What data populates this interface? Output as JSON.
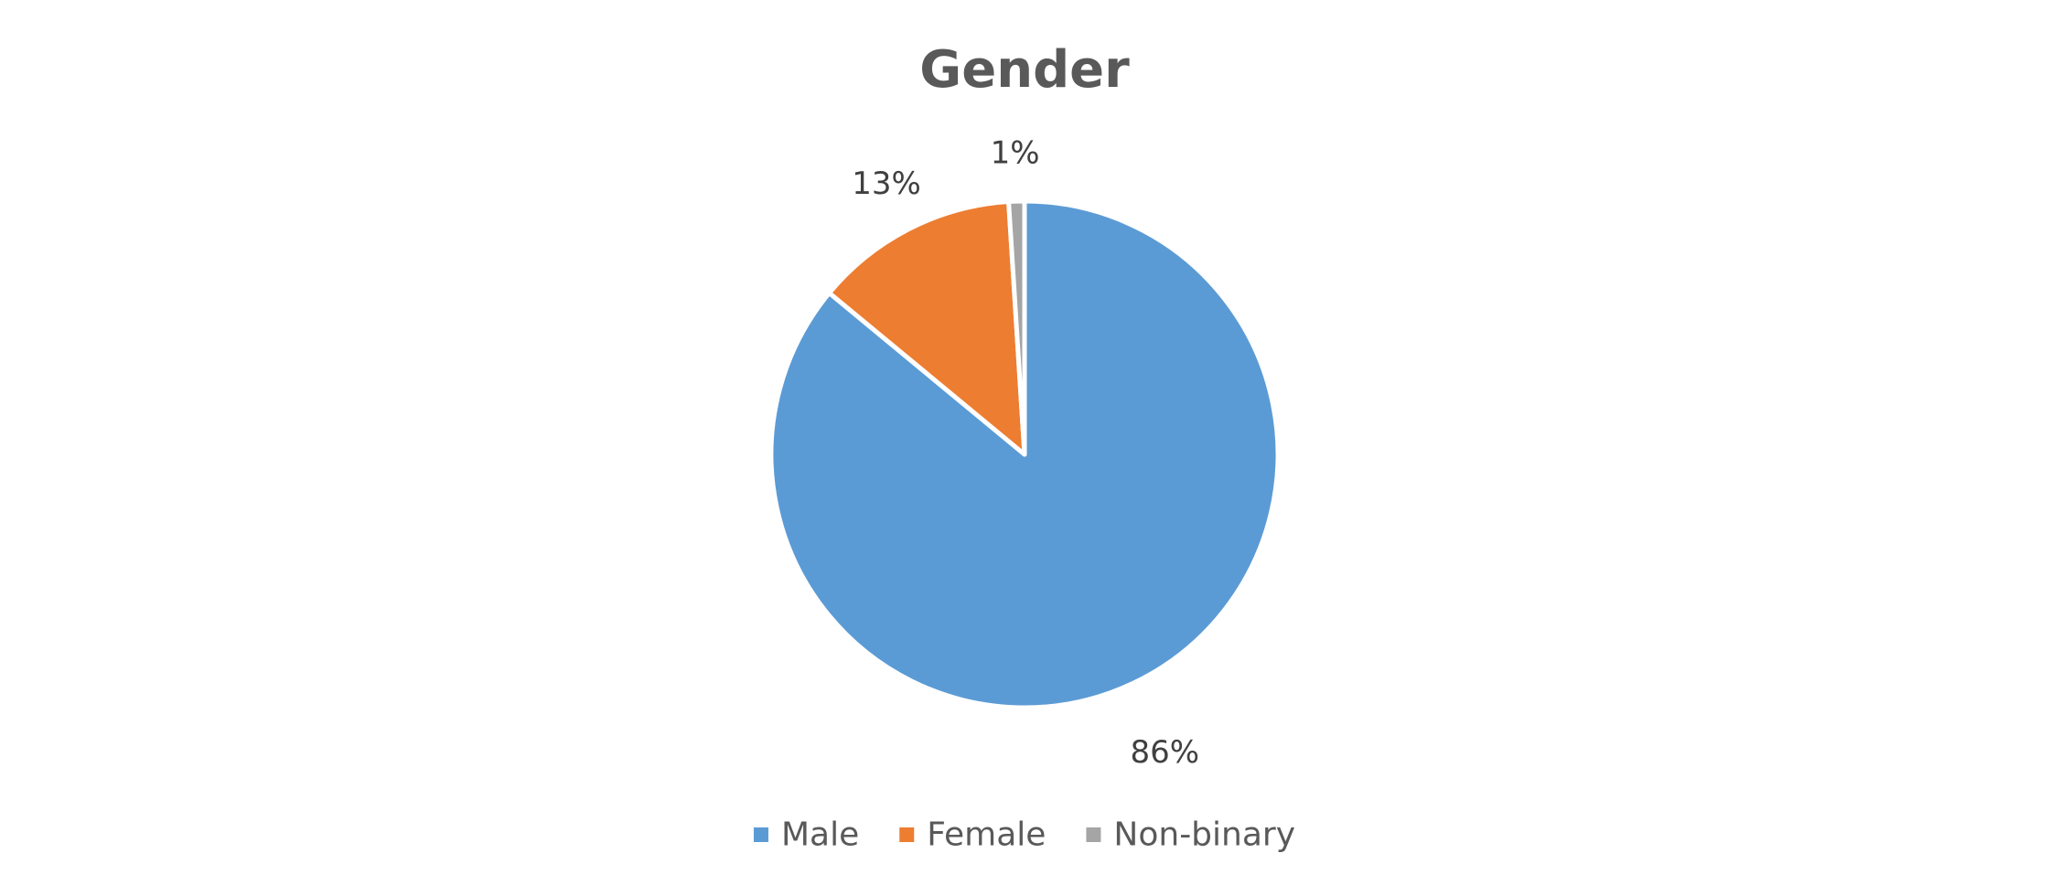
{
  "chart_data": {
    "type": "pie",
    "title": "Gender",
    "start_angle_deg": 0,
    "direction": "clockwise",
    "legend_position": "bottom",
    "slices": [
      {
        "label": "Male",
        "value": 86,
        "data_label": "86%",
        "color": "#5B9BD5"
      },
      {
        "label": "Female",
        "value": 13,
        "data_label": "13%",
        "color": "#ED7D31"
      },
      {
        "label": "Non-binary",
        "value": 1,
        "data_label": "1%",
        "color": "#A5A5A5"
      }
    ]
  }
}
